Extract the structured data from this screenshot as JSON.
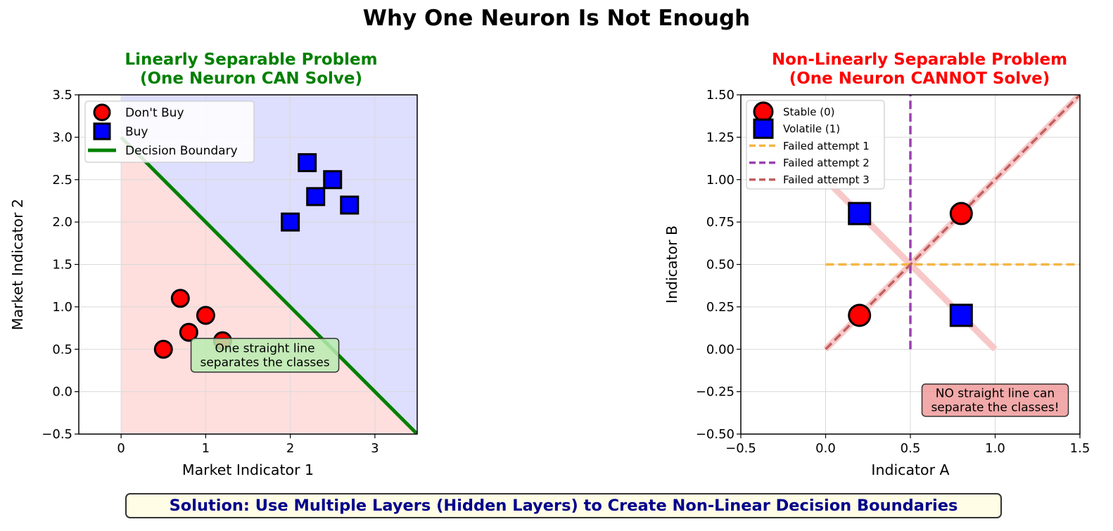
{
  "title": "Why One Neuron Is Not Enough",
  "footer": "Solution: Use Multiple Layers (Hidden Layers) to Create Non-Linear Decision Boundaries",
  "chart_data": [
    {
      "type": "scatter",
      "title_lines": [
        "Linearly Separable Problem",
        "(One Neuron CAN Solve)"
      ],
      "title_color": "#008000",
      "xlabel": "Market Indicator 1",
      "ylabel": "Market Indicator 2",
      "xlim": [
        -0.5,
        3.5
      ],
      "ylim": [
        -0.5,
        3.5
      ],
      "xticks": [
        0,
        1,
        2,
        3
      ],
      "xtick_labels": [
        "0",
        "1",
        "2",
        "3"
      ],
      "yticks": [
        -0.5,
        0.0,
        0.5,
        1.0,
        1.5,
        2.0,
        2.5,
        3.0,
        3.5
      ],
      "ytick_labels": [
        "−0.5",
        "0.0",
        "0.5",
        "1.0",
        "1.5",
        "2.0",
        "2.5",
        "3.0",
        "3.5"
      ],
      "grid": true,
      "regions": [
        {
          "name": "dont-buy-region",
          "color": "#ffdede",
          "x_from": 0
        },
        {
          "name": "buy-region",
          "color": "#dedeff",
          "x_from": 0
        }
      ],
      "series": [
        {
          "name": "Don't Buy",
          "marker": "circle",
          "color": "#ff0000",
          "points": [
            [
              0.5,
              0.5
            ],
            [
              0.7,
              1.1
            ],
            [
              0.8,
              0.7
            ],
            [
              1.0,
              0.9
            ],
            [
              1.2,
              0.6
            ]
          ]
        },
        {
          "name": "Buy",
          "marker": "square",
          "color": "#0000ff",
          "points": [
            [
              2.0,
              2.0
            ],
            [
              2.2,
              2.7
            ],
            [
              2.3,
              2.3
            ],
            [
              2.5,
              2.5
            ],
            [
              2.7,
              2.2
            ]
          ]
        }
      ],
      "lines": [
        {
          "name": "Decision Boundary",
          "color": "#008000",
          "dash": "solid",
          "points": [
            [
              0,
              3.0
            ],
            [
              3.5,
              -0.5
            ]
          ]
        }
      ],
      "legend": "top-left",
      "legend_entries": [
        {
          "label": "Don't Buy",
          "kind": "circle",
          "color": "#ff0000"
        },
        {
          "label": "Buy",
          "kind": "square",
          "color": "#0000ff"
        },
        {
          "label": "Decision Boundary",
          "kind": "line",
          "color": "#008000",
          "dash": "solid"
        }
      ],
      "annotation": {
        "lines": [
          "One straight line",
          "separates the classes"
        ],
        "x": 1.7,
        "y": 0.43,
        "bg": "#b8ecb0"
      }
    },
    {
      "type": "scatter",
      "title_lines": [
        "Non-Linearly Separable Problem",
        "(One Neuron CANNOT Solve)"
      ],
      "title_color": "#ff0000",
      "xlabel": "Indicator A",
      "ylabel": "Indicator B",
      "xlim": [
        -0.5,
        1.5
      ],
      "ylim": [
        -0.5,
        1.5
      ],
      "xticks": [
        -0.5,
        0.0,
        0.5,
        1.0,
        1.5
      ],
      "xtick_labels": [
        "−0.5",
        "0.0",
        "0.5",
        "1.0",
        "1.5"
      ],
      "yticks": [
        -0.5,
        -0.25,
        0.0,
        0.25,
        0.5,
        0.75,
        1.0,
        1.25,
        1.5
      ],
      "ytick_labels": [
        "−0.50",
        "−0.25",
        "0.00",
        "0.25",
        "0.50",
        "0.75",
        "1.00",
        "1.25",
        "1.50"
      ],
      "grid": true,
      "series": [
        {
          "name": "Stable (0)",
          "marker": "circle",
          "color": "#ff0000",
          "points": [
            [
              0.2,
              0.2
            ],
            [
              0.8,
              0.8
            ]
          ]
        },
        {
          "name": "Volatile (1)",
          "marker": "square",
          "color": "#0000ff",
          "points": [
            [
              0.2,
              0.8
            ],
            [
              0.8,
              0.2
            ]
          ]
        }
      ],
      "lines": [
        {
          "name": "anti-diagonal-highlight",
          "color": "#f8c8c8",
          "dash": "solid",
          "points": [
            [
              0,
              1
            ],
            [
              1,
              0
            ]
          ]
        },
        {
          "name": "diagonal-highlight",
          "color": "#f8c8c8",
          "dash": "solid",
          "points": [
            [
              0,
              0
            ],
            [
              1.5,
              1.5
            ]
          ]
        },
        {
          "name": "Failed attempt 1",
          "color": "#f5b642",
          "dash": "dashed",
          "points": [
            [
              0,
              0.5
            ],
            [
              1.5,
              0.5
            ]
          ]
        },
        {
          "name": "Failed attempt 2",
          "color": "#9b40b0",
          "dash": "dashed",
          "points": [
            [
              0.5,
              0
            ],
            [
              0.5,
              1.5
            ]
          ]
        },
        {
          "name": "Failed attempt 3",
          "color": "#c06060",
          "dash": "dashed",
          "points": [
            [
              0,
              0
            ],
            [
              1.5,
              1.5
            ]
          ]
        }
      ],
      "legend": "top-left",
      "legend_entries": [
        {
          "label": "Stable (0)",
          "kind": "circle",
          "color": "#ff0000"
        },
        {
          "label": "Volatile (1)",
          "kind": "square",
          "color": "#0000ff"
        },
        {
          "label": "Failed attempt 1",
          "kind": "line",
          "color": "#f5b642",
          "dash": "dashed"
        },
        {
          "label": "Failed attempt 2",
          "kind": "line",
          "color": "#9b40b0",
          "dash": "dashed"
        },
        {
          "label": "Failed attempt 3",
          "kind": "line",
          "color": "#c06060",
          "dash": "dashed"
        }
      ],
      "annotation": {
        "lines": [
          "NO straight line can",
          "separate the classes!"
        ],
        "x": 1.0,
        "y": -0.3,
        "bg": "#f09a9a"
      }
    }
  ]
}
